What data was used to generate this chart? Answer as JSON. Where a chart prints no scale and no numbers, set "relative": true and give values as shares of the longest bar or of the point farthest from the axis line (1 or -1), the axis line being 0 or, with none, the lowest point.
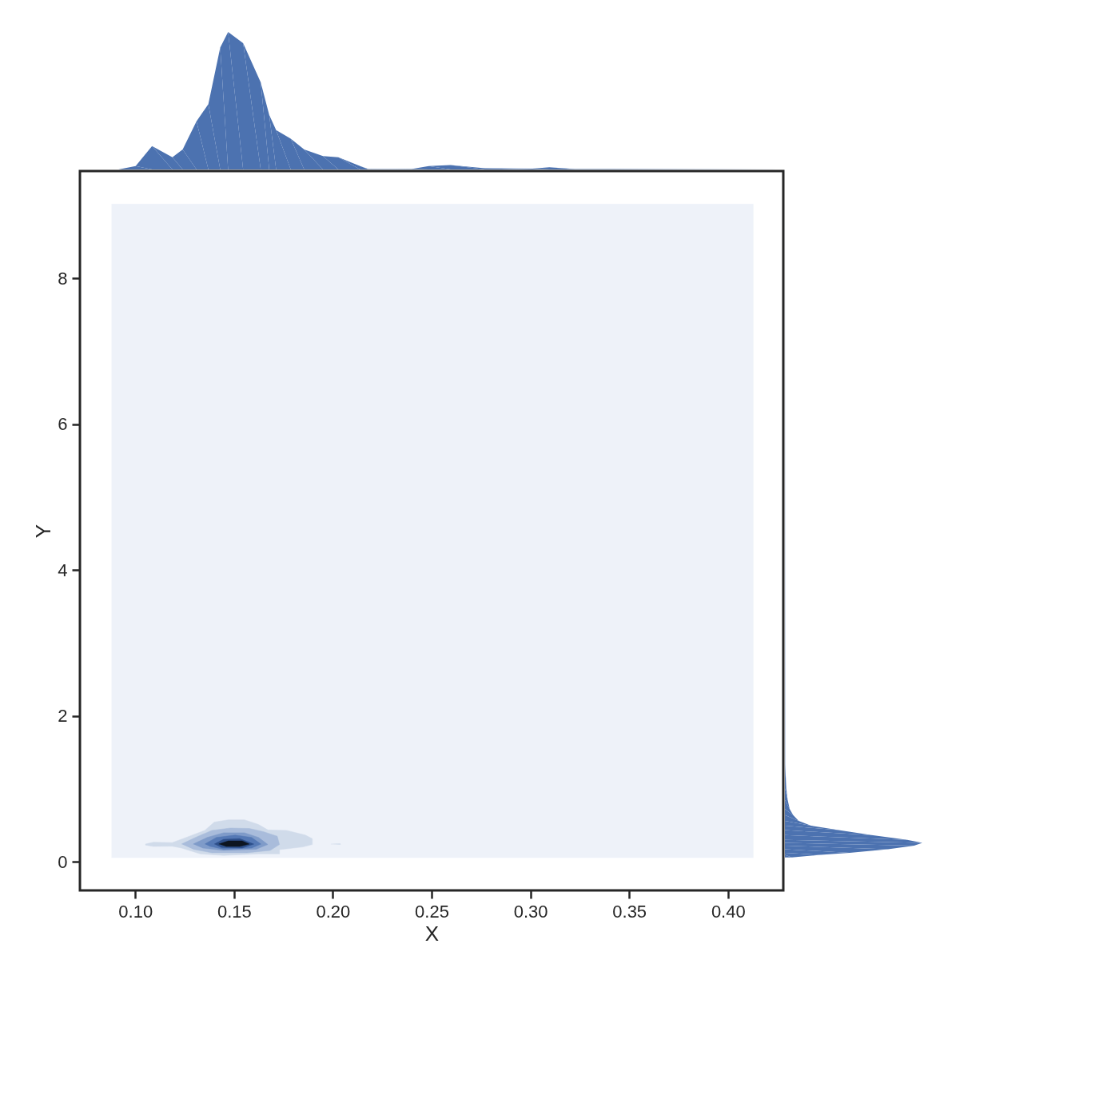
{
  "chart_data": [
    {
      "type": "area",
      "relative": true,
      "tick_labels": false,
      "color": "#4c72b0",
      "xlim": [
        0.072,
        0.428
      ],
      "x": [
        0.0915,
        0.1002,
        0.1085,
        0.1188,
        0.124,
        0.131,
        0.137,
        0.143,
        0.147,
        0.1546,
        0.1635,
        0.1678,
        0.1713,
        0.1787,
        0.1855,
        0.195,
        0.2028,
        0.2138,
        0.218,
        0.2397,
        0.2486,
        0.2596,
        0.277,
        0.301,
        0.3096,
        0.3227,
        0.428
      ],
      "values": [
        0,
        0.025,
        0.17,
        0.088,
        0.145,
        0.35,
        0.476,
        0.886,
        1.0,
        0.918,
        0.634,
        0.397,
        0.287,
        0.224,
        0.145,
        0.098,
        0.088,
        0.025,
        0.003,
        0.003,
        0.025,
        0.032,
        0.009,
        0.006,
        0.016,
        0.003,
        0
      ]
    },
    {
      "type": "area",
      "xlabel": "X",
      "ylabel": "Y",
      "xlim": [
        0.072,
        0.428
      ],
      "ylim": [
        -0.39,
        9.47
      ],
      "xticks": [
        {
          "value": 0.1,
          "label": "0.10"
        },
        {
          "value": 0.15,
          "label": "0.15"
        },
        {
          "value": 0.2,
          "label": "0.20"
        },
        {
          "value": 0.25,
          "label": "0.25"
        },
        {
          "value": 0.3,
          "label": "0.30"
        },
        {
          "value": 0.35,
          "label": "0.35"
        },
        {
          "value": 0.4,
          "label": "0.40"
        }
      ],
      "yticks": [
        0,
        2,
        4,
        6,
        8
      ],
      "series": [
        {
          "color": "#eef2f9",
          "x": [
            0.088,
            0.4128,
            0.4128,
            0.088
          ],
          "values": [
            0.058,
            0.058,
            9.017,
            9.017
          ]
        },
        {
          "color": "#d0dbea",
          "x": [
            0.1051,
            0.1092,
            0.1187,
            0.1258,
            0.1352,
            0.14,
            0.1471,
            0.1553,
            0.1624,
            0.1671,
            0.1766,
            0.1861,
            0.1896,
            0.1896,
            0.1849,
            0.173,
            0.173,
            0.1624,
            0.1447,
            0.1329,
            0.1234,
            0.1187,
            0.1092,
            0.1051
          ],
          "values": [
            0.245,
            0.271,
            0.265,
            0.336,
            0.433,
            0.546,
            0.578,
            0.578,
            0.513,
            0.439,
            0.433,
            0.368,
            0.32,
            0.239,
            0.206,
            0.168,
            0.11,
            0.11,
            0.09,
            0.11,
            0.191,
            0.216,
            0.213,
            0.232
          ]
        },
        {
          "color": "#d0dbea",
          "x": [
            0.199,
            0.2038,
            0.2038
          ],
          "values": [
            0.245,
            0.25,
            0.237
          ]
        },
        {
          "color": "#a9bcdb",
          "x": [
            0.1234,
            0.1305,
            0.1388,
            0.1482,
            0.1577,
            0.1648,
            0.1719,
            0.173,
            0.1683,
            0.1565,
            0.1388,
            0.1293
          ],
          "values": [
            0.245,
            0.336,
            0.433,
            0.465,
            0.459,
            0.416,
            0.352,
            0.239,
            0.158,
            0.126,
            0.126,
            0.174
          ]
        },
        {
          "color": "#7f9bc9",
          "x": [
            0.1293,
            0.1364,
            0.1447,
            0.1553,
            0.1624,
            0.1671,
            0.1612,
            0.1447,
            0.134
          ],
          "values": [
            0.245,
            0.336,
            0.4,
            0.4,
            0.336,
            0.239,
            0.174,
            0.158,
            0.191
          ]
        },
        {
          "color": "#5579b5",
          "x": [
            0.1352,
            0.1411,
            0.1506,
            0.1589,
            0.1636,
            0.1589,
            0.1447,
            0.1376
          ],
          "values": [
            0.245,
            0.336,
            0.368,
            0.336,
            0.245,
            0.191,
            0.174,
            0.216
          ]
        },
        {
          "color": "#2d4f8a",
          "x": [
            0.14,
            0.1447,
            0.1529,
            0.16,
            0.1541,
            0.1435
          ],
          "values": [
            0.245,
            0.31,
            0.32,
            0.245,
            0.191,
            0.2
          ]
        },
        {
          "color": "#0d1520",
          "x": [
            0.1423,
            0.1471,
            0.1541,
            0.1577,
            0.1529,
            0.1459
          ],
          "values": [
            0.245,
            0.288,
            0.288,
            0.245,
            0.213,
            0.213
          ]
        }
      ]
    },
    {
      "type": "area",
      "relative": true,
      "orientation": "horizontal",
      "tick_labels": false,
      "color": "#4c72b0",
      "ylim": [
        -0.39,
        9.47
      ],
      "x": [
        0.061,
        0.097,
        0.126,
        0.174,
        0.223,
        0.261,
        0.303,
        0.368,
        0.436,
        0.497,
        0.562,
        0.642,
        0.726,
        0.852,
        1.01,
        1.34,
        9.2
      ],
      "values": [
        0.05,
        0.26,
        0.47,
        0.75,
        0.94,
        1.0,
        0.89,
        0.63,
        0.39,
        0.19,
        0.1,
        0.06,
        0.035,
        0.02,
        0.01,
        0.002,
        0
      ]
    }
  ]
}
